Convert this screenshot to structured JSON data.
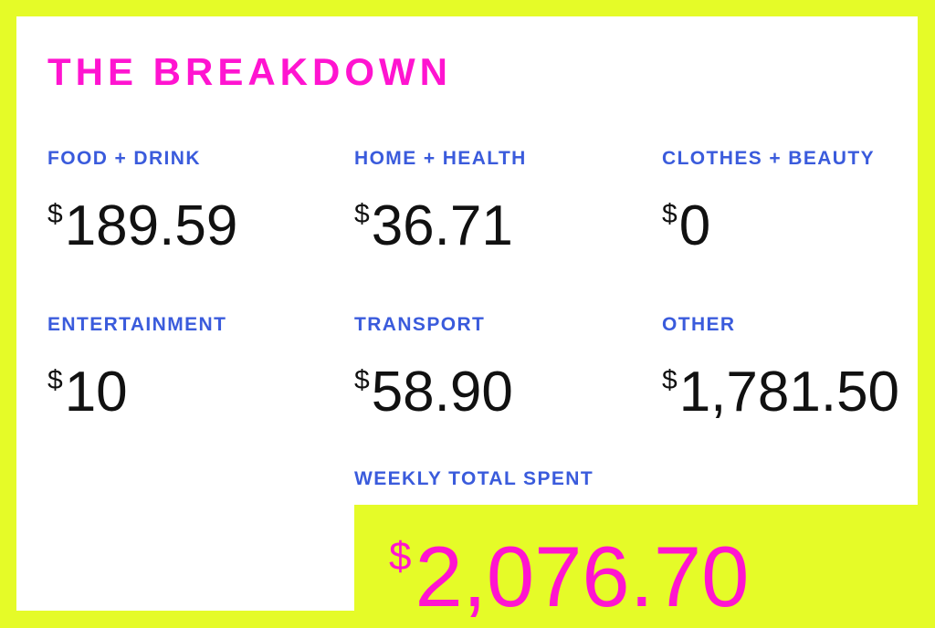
{
  "title": "THE BREAKDOWN",
  "currency_symbol": "$",
  "categories": [
    {
      "label": "FOOD + DRINK",
      "amount": "189.59"
    },
    {
      "label": "HOME + HEALTH",
      "amount": "36.71"
    },
    {
      "label": "CLOTHES + BEAUTY",
      "amount": "0"
    },
    {
      "label": "ENTERTAINMENT",
      "amount": "10"
    },
    {
      "label": "TRANSPORT",
      "amount": "58.90"
    },
    {
      "label": "OTHER",
      "amount": "1,781.50"
    }
  ],
  "total": {
    "label": "WEEKLY TOTAL SPENT",
    "amount": "2,076.70"
  },
  "colors": {
    "background": "#e5fb28",
    "card": "#ffffff",
    "title": "#ff14d0",
    "label": "#3a5bdc",
    "amount": "#111111",
    "total_amount": "#ff14d0"
  }
}
